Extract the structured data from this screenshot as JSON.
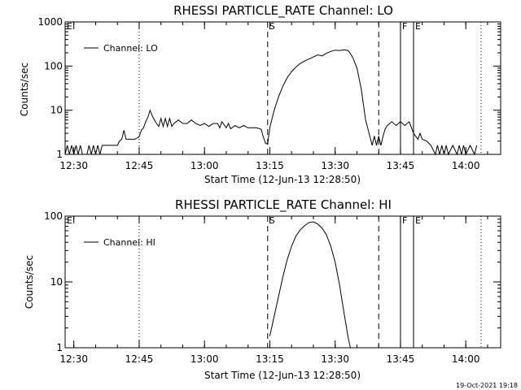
{
  "chart_data": [
    {
      "type": "line",
      "title": "RHESSI PARTICLE_RATE Channel: LO",
      "xlabel": "Start Time (12-Jun-13 12:28:50)",
      "ylabel": "Counts/sec",
      "y_scale": "log",
      "xlim": [
        "12:28",
        "14:08"
      ],
      "ylim": [
        1,
        1000
      ],
      "x_ticks": [
        "12:30",
        "12:45",
        "13:00",
        "13:15",
        "13:30",
        "13:45",
        "14:00"
      ],
      "y_ticks": [
        "1",
        "10",
        "100",
        "1000"
      ],
      "legend": "top-left",
      "series": [
        {
          "name": "Channel: LO",
          "points": [
            [
              "12:28",
              1.0
            ],
            [
              "12:28.5",
              1.6
            ],
            [
              "12:29",
              1.0
            ],
            [
              "12:29.5",
              1.6
            ],
            [
              "12:30",
              1.0
            ],
            [
              "12:30.5",
              1.6
            ],
            [
              "12:31",
              1.0
            ],
            [
              "12:31.5",
              1.6
            ],
            [
              "12:32",
              1.0
            ],
            [
              "12:32.5",
              1.0
            ],
            [
              "12:33",
              1.0
            ],
            [
              "12:33.5",
              1.6
            ],
            [
              "12:34",
              1.0
            ],
            [
              "12:34.5",
              1.6
            ],
            [
              "12:35",
              1.0
            ],
            [
              "12:35.5",
              1.6
            ],
            [
              "12:36",
              1.0
            ],
            [
              "12:36.5",
              1.6
            ],
            [
              "12:37",
              1.6
            ],
            [
              "12:38",
              1.6
            ],
            [
              "12:39",
              1.6
            ],
            [
              "12:40",
              1.6
            ],
            [
              "12:40.5",
              2.0
            ],
            [
              "12:41",
              2.2
            ],
            [
              "12:41.5",
              3.5
            ],
            [
              "12:42",
              2.2
            ],
            [
              "12:43",
              2.2
            ],
            [
              "12:44",
              2.2
            ],
            [
              "12:45",
              2.5
            ],
            [
              "12:45.5",
              3.5
            ],
            [
              "12:46",
              4.0
            ],
            [
              "12:46.5",
              5.5
            ],
            [
              "12:47",
              7.0
            ],
            [
              "12:47.5",
              10.0
            ],
            [
              "12:48",
              7.5
            ],
            [
              "12:48.5",
              6.0
            ],
            [
              "12:49",
              5.0
            ],
            [
              "12:49.5",
              4.3
            ],
            [
              "12:50",
              6.5
            ],
            [
              "12:50.5",
              4.3
            ],
            [
              "12:51",
              6.5
            ],
            [
              "12:51.5",
              4.3
            ],
            [
              "12:52",
              6.5
            ],
            [
              "12:52.5",
              4.3
            ],
            [
              "12:53",
              5.0
            ],
            [
              "12:54",
              6.0
            ],
            [
              "12:55",
              5.0
            ],
            [
              "12:56",
              5.0
            ],
            [
              "12:57",
              6.0
            ],
            [
              "12:58",
              5.0
            ],
            [
              "12:59",
              4.5
            ],
            [
              "13:00",
              5.0
            ],
            [
              "13:01",
              4.3
            ],
            [
              "13:02",
              5.0
            ],
            [
              "13:03",
              5.0
            ],
            [
              "13:03.5",
              4.0
            ],
            [
              "13:04",
              5.5
            ],
            [
              "13:05",
              4.0
            ],
            [
              "13:05.5",
              5.0
            ],
            [
              "13:06",
              3.8
            ],
            [
              "13:07",
              4.5
            ],
            [
              "13:08",
              4.0
            ],
            [
              "13:09",
              4.5
            ],
            [
              "13:10",
              4.0
            ],
            [
              "13:11",
              4.0
            ],
            [
              "13:12",
              4.0
            ],
            [
              "13:13",
              3.7
            ],
            [
              "13:13.5",
              2.5
            ],
            [
              "13:14",
              1.8
            ],
            [
              "13:14.5",
              1.7
            ],
            [
              "13:15",
              4.0
            ],
            [
              "13:16",
              10.0
            ],
            [
              "13:17",
              20.0
            ],
            [
              "13:18",
              35.0
            ],
            [
              "13:19",
              55.0
            ],
            [
              "13:20",
              75.0
            ],
            [
              "13:21",
              95.0
            ],
            [
              "13:22",
              115.0
            ],
            [
              "13:23",
              130.0
            ],
            [
              "13:24",
              145.0
            ],
            [
              "13:25",
              160.0
            ],
            [
              "13:26",
              180.0
            ],
            [
              "13:27",
              170.0
            ],
            [
              "13:28",
              195.0
            ],
            [
              "13:29",
              215.0
            ],
            [
              "13:30",
              230.0
            ],
            [
              "13:31",
              225.0
            ],
            [
              "13:32",
              235.0
            ],
            [
              "13:33",
              225.0
            ],
            [
              "13:34",
              160.0
            ],
            [
              "13:35",
              90.0
            ],
            [
              "13:36",
              30.0
            ],
            [
              "13:37",
              6.0
            ],
            [
              "13:38",
              2.5
            ],
            [
              "13:38.5",
              1.6
            ],
            [
              "13:39",
              2.6
            ],
            [
              "13:39.5",
              1.6
            ],
            [
              "13:40",
              2.6
            ],
            [
              "13:40.5",
              1.6
            ],
            [
              "13:41",
              2.6
            ],
            [
              "13:41.5",
              3.8
            ],
            [
              "13:42",
              4.5
            ],
            [
              "13:43",
              5.5
            ],
            [
              "13:44",
              4.5
            ],
            [
              "13:45",
              5.5
            ],
            [
              "13:46",
              4.5
            ],
            [
              "13:47",
              5.5
            ],
            [
              "13:48",
              3.0
            ],
            [
              "13:49",
              2.2
            ],
            [
              "13:49.5",
              3.0
            ],
            [
              "13:50",
              2.2
            ],
            [
              "13:51",
              2.0
            ],
            [
              "13:52",
              1.6
            ],
            [
              "13:53",
              1.0
            ],
            [
              "13:53.5",
              1.6
            ],
            [
              "13:54",
              1.0
            ],
            [
              "13:54.5",
              1.6
            ],
            [
              "13:55",
              1.0
            ],
            [
              "13:55.5",
              1.6
            ],
            [
              "13:56",
              1.0
            ],
            [
              "13:57",
              1.6
            ],
            [
              "13:58",
              1.0
            ],
            [
              "13:58.5",
              1.6
            ],
            [
              "13:59",
              1.0
            ],
            [
              "13:59.5",
              1.6
            ],
            [
              "14:00",
              1.0
            ],
            [
              "14:01",
              1.6
            ],
            [
              "14:02",
              1.0
            ],
            [
              "14:02.5",
              1.6
            ]
          ]
        }
      ],
      "markers": [
        {
          "label": "S",
          "time": "13:14.5",
          "style": "dashed"
        },
        {
          "label": "",
          "time": "13:40",
          "style": "dashed"
        },
        {
          "label": "F",
          "time": "13:45",
          "style": "solid"
        },
        {
          "label": "E",
          "time": "13:48",
          "style": "solid"
        },
        {
          "label": "",
          "time": "12:45",
          "style": "dotted"
        },
        {
          "label": "",
          "time": "14:03.5",
          "style": "dotted"
        }
      ],
      "corner_labels": [
        {
          "label": "E",
          "time": "12:28"
        }
      ]
    },
    {
      "type": "line",
      "title": "RHESSI PARTICLE_RATE Channel: HI",
      "xlabel": "Start Time (12-Jun-13 12:28:50)",
      "ylabel": "Counts/sec",
      "y_scale": "log",
      "xlim": [
        "12:28",
        "14:08"
      ],
      "ylim": [
        1,
        100
      ],
      "x_ticks": [
        "12:30",
        "12:45",
        "13:00",
        "13:15",
        "13:30",
        "13:45",
        "14:00"
      ],
      "y_ticks": [
        "1",
        "10",
        "100"
      ],
      "legend": "top-left",
      "series": [
        {
          "name": "Channel: HI",
          "points": [
            [
              "13:15",
              1.5
            ],
            [
              "13:16",
              3.0
            ],
            [
              "13:17",
              6.0
            ],
            [
              "13:18",
              12.0
            ],
            [
              "13:19",
              22.0
            ],
            [
              "13:20",
              35.0
            ],
            [
              "13:21",
              50.0
            ],
            [
              "13:22",
              62.0
            ],
            [
              "13:23",
              72.0
            ],
            [
              "13:24",
              80.0
            ],
            [
              "13:25",
              82.0
            ],
            [
              "13:26",
              76.0
            ],
            [
              "13:27",
              66.0
            ],
            [
              "13:28",
              52.0
            ],
            [
              "13:29",
              35.0
            ],
            [
              "13:30",
              20.0
            ],
            [
              "13:31",
              9.0
            ],
            [
              "13:32",
              3.5
            ],
            [
              "13:33",
              1.4
            ],
            [
              "13:33.5",
              1.0
            ]
          ]
        }
      ],
      "markers": [
        {
          "label": "S",
          "time": "13:14.5",
          "style": "dashed"
        },
        {
          "label": "",
          "time": "13:40",
          "style": "dashed"
        },
        {
          "label": "F",
          "time": "13:45",
          "style": "solid"
        },
        {
          "label": "E",
          "time": "13:48",
          "style": "solid"
        },
        {
          "label": "",
          "time": "12:45",
          "style": "dotted"
        },
        {
          "label": "",
          "time": "14:03.5",
          "style": "dotted"
        }
      ],
      "corner_labels": [
        {
          "label": "E",
          "time": "12:28"
        }
      ]
    }
  ],
  "footer": {
    "timestamp": "19-Oct-2021 19:18"
  }
}
